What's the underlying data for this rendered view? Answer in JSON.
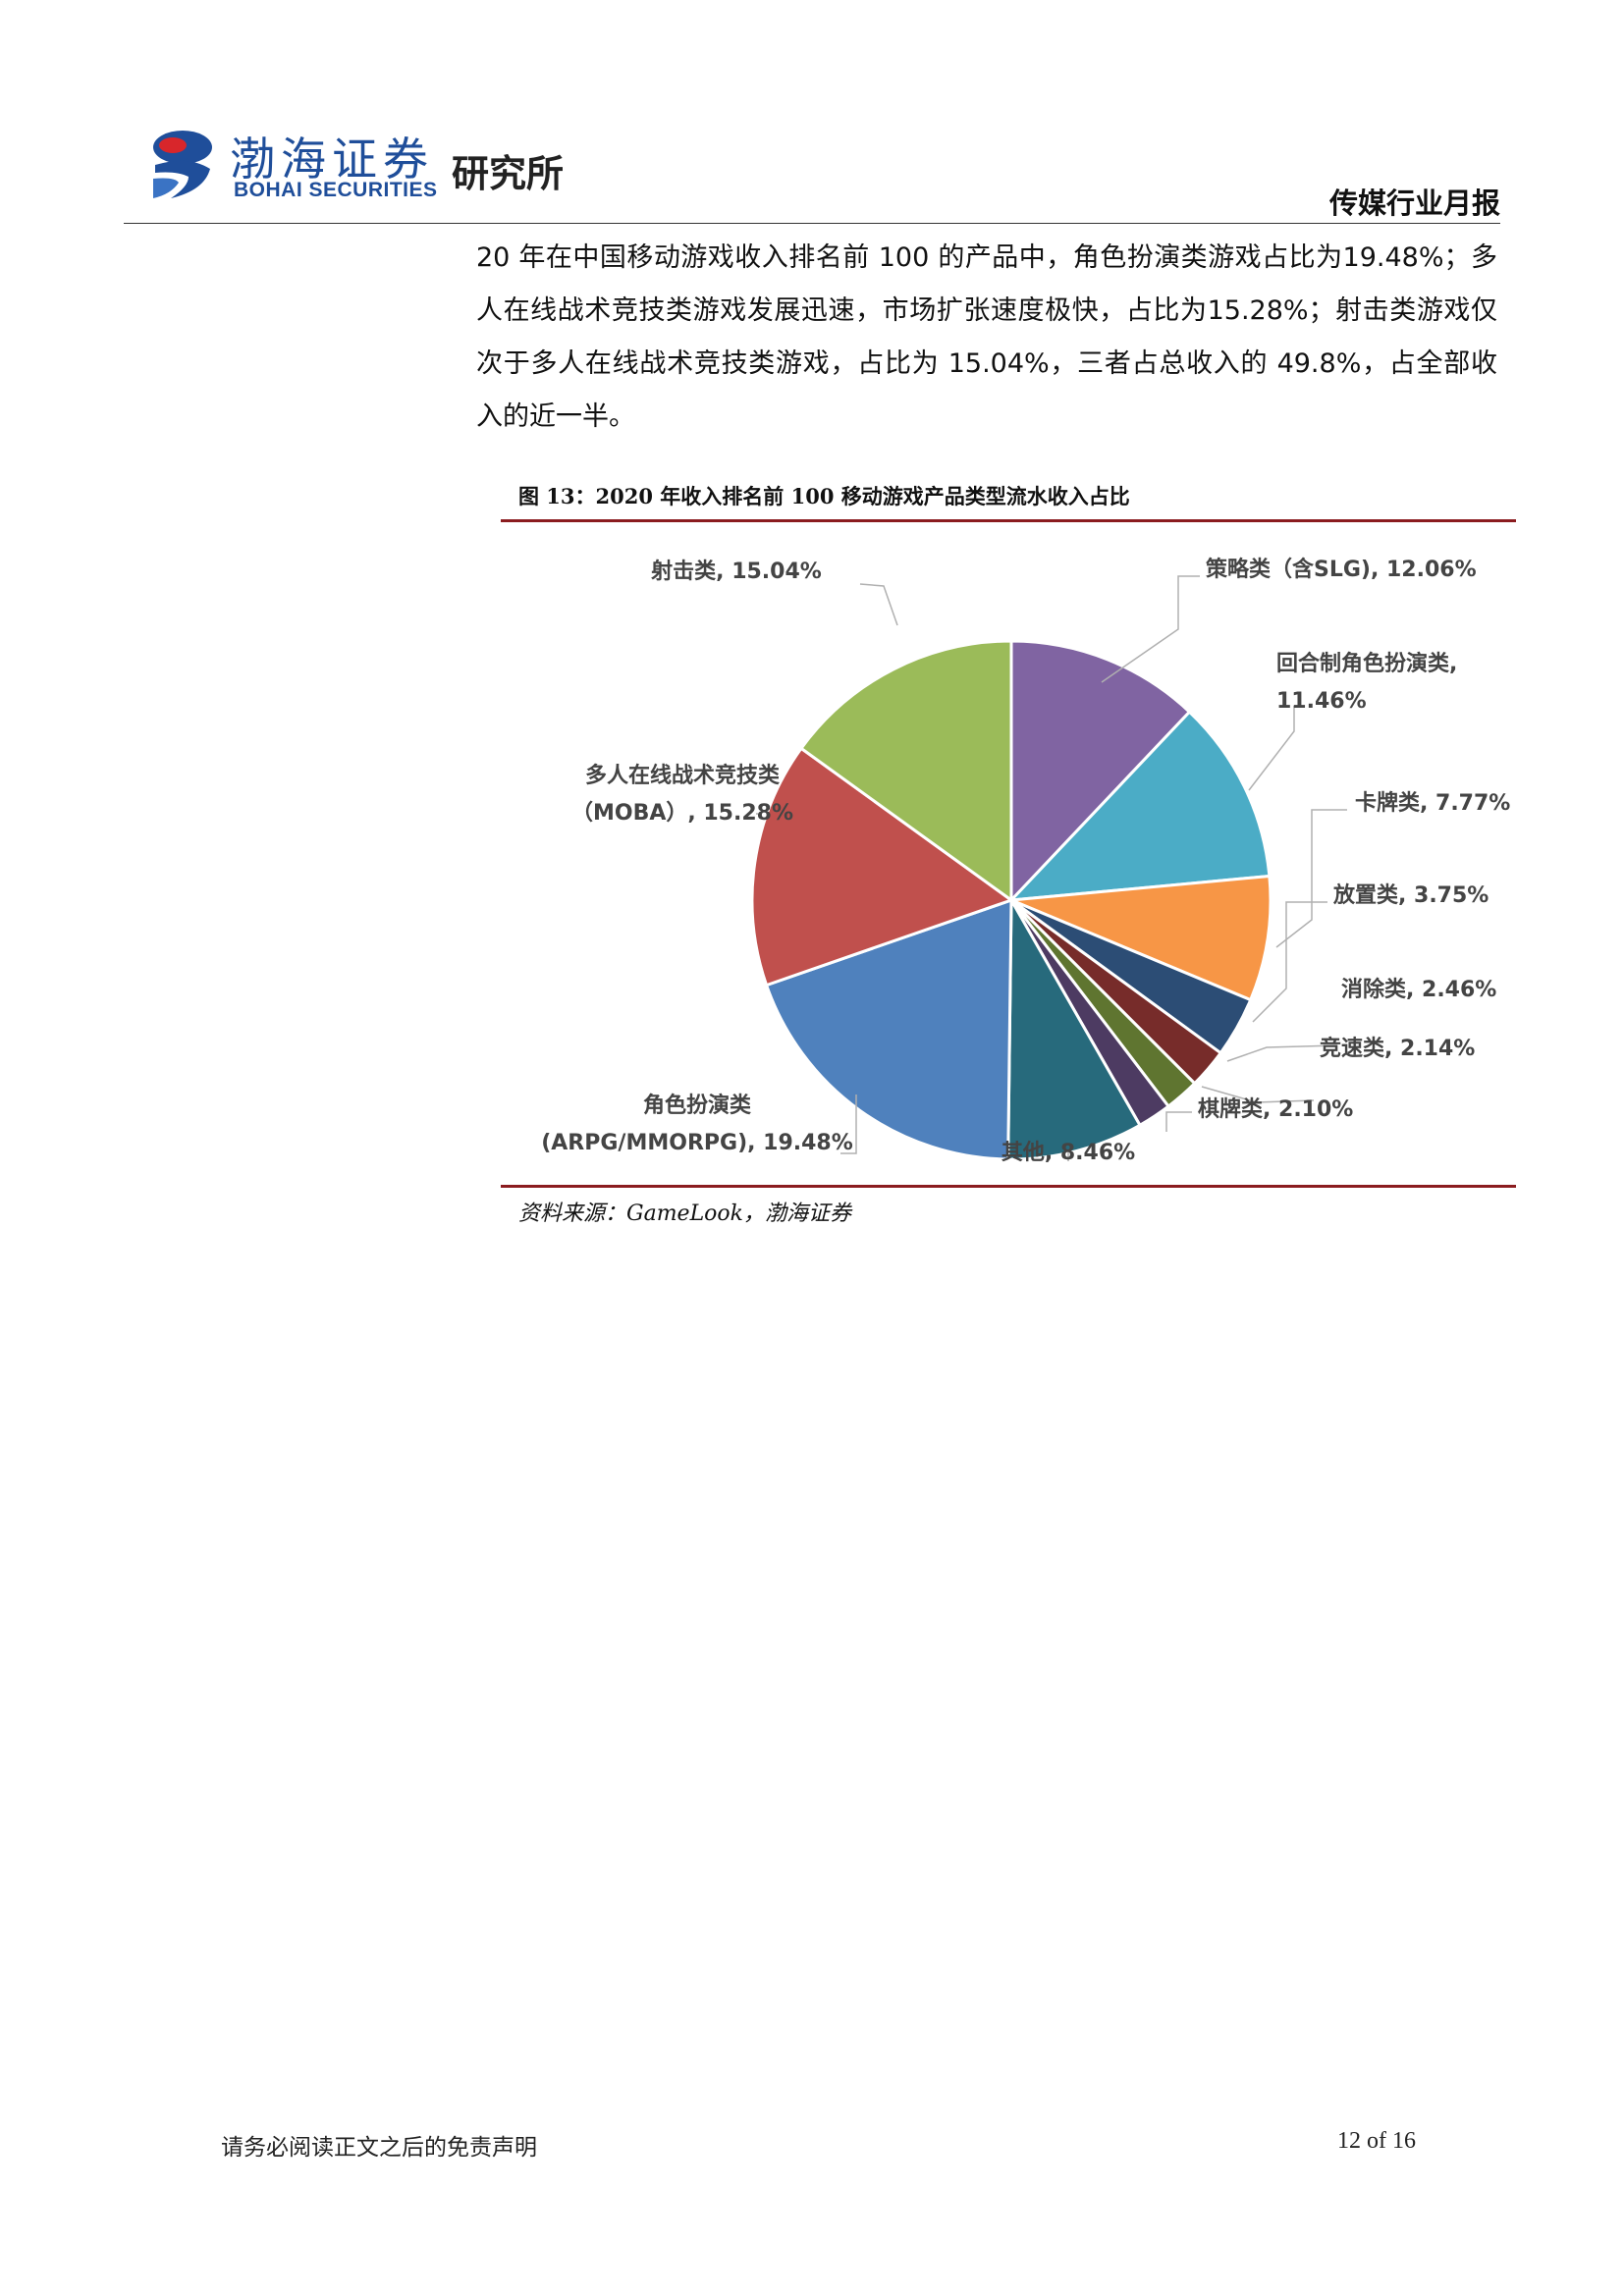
{
  "header": {
    "logo_cn": "渤海证券",
    "logo_en": "BOHAI SECURITIES",
    "institute": "研究所",
    "report_type": "传媒行业月报"
  },
  "paragraph": {
    "text": "20 年在中国移动游戏收入排名前 100 的产品中，角色扮演类游戏占比为19.48%；多人在线战术竞技类游戏发展迅速，市场扩张速度极快，占比为15.28%；射击类游戏仅次于多人在线战术竞技类游戏，占比为 15.04%，三者占总收入的 49.8%，占全部收入的近一半。"
  },
  "figure": {
    "title": "图 13：2020 年收入排名前 100 移动游戏产品类型流水收入占比",
    "source": "资料来源：GameLook，渤海证券"
  },
  "chart_data": {
    "type": "pie",
    "slices": [
      {
        "lines": [
          "策略类（含SLG), 12.06%"
        ],
        "value": 12.06,
        "color": "#8064a2"
      },
      {
        "lines": [
          "回合制角色扮演类,",
          "11.46%"
        ],
        "value": 11.46,
        "color": "#4bacc6"
      },
      {
        "lines": [
          "卡牌类, 7.77%"
        ],
        "value": 7.77,
        "color": "#f79646"
      },
      {
        "lines": [
          "放置类, 3.75%"
        ],
        "value": 3.75,
        "color": "#2c4d75"
      },
      {
        "lines": [
          "消除类, 2.46%"
        ],
        "value": 2.46,
        "color": "#772c2a"
      },
      {
        "lines": [
          "竞速类, 2.14%"
        ],
        "value": 2.14,
        "color": "#5f7530"
      },
      {
        "lines": [
          "棋牌类, 2.10%"
        ],
        "value": 2.1,
        "color": "#4d3b62"
      },
      {
        "lines": [
          "其他, 8.46%"
        ],
        "value": 8.46,
        "color": "#276a7c"
      },
      {
        "lines": [
          "角色扮演类",
          "(ARPG/MMORPG), 19.48%"
        ],
        "value": 19.48,
        "color": "#4f81bd"
      },
      {
        "lines": [
          "多人在线战术竞技类",
          "（MOBA）, 15.28%"
        ],
        "value": 15.28,
        "color": "#c0504d"
      },
      {
        "lines": [
          "射击类, 15.04%"
        ],
        "value": 15.04,
        "color": "#9bbb59"
      }
    ]
  },
  "footer": {
    "disclaimer": "请务必阅读正文之后的免责声明",
    "page": "12 of 16"
  }
}
